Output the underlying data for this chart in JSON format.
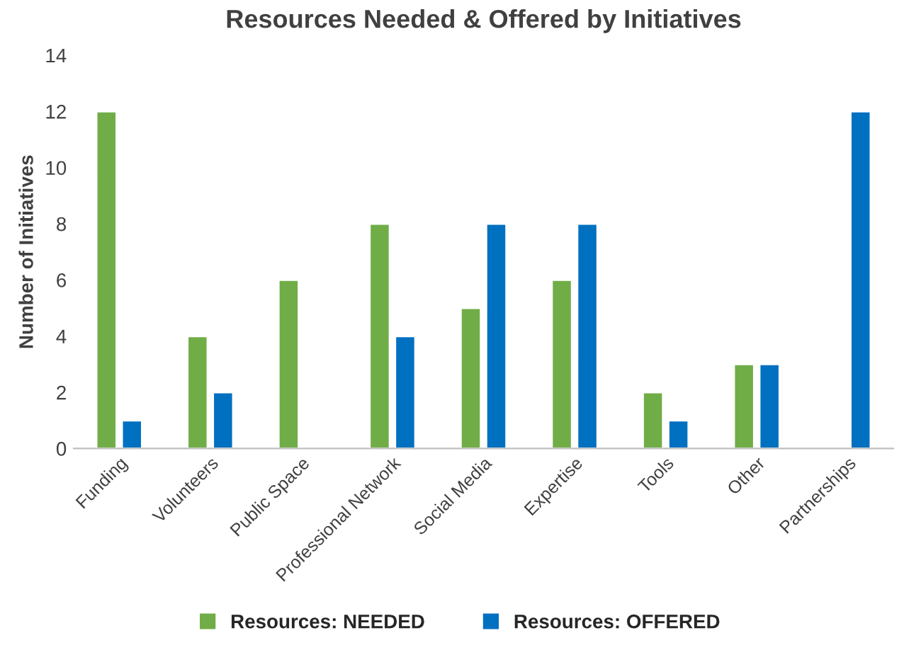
{
  "chart_data": {
    "type": "bar",
    "title": "Resources Needed & Offered by Initiatives",
    "ylabel": "Number of Initiatives",
    "categories": [
      "Funding",
      "Volunteers",
      "Public Space",
      "Professional Network",
      "Social Media",
      "Expertise",
      "Tools",
      "Other",
      "Partnerships"
    ],
    "series": [
      {
        "name": "Resources: NEEDED",
        "color": "#70ad47",
        "values": [
          12,
          4,
          6,
          8,
          5,
          6,
          2,
          3,
          null
        ]
      },
      {
        "name": "Resources: OFFERED",
        "color": "#0070c0",
        "values": [
          1,
          2,
          null,
          4,
          8,
          8,
          1,
          3,
          12
        ]
      }
    ],
    "ylim": [
      0,
      14
    ],
    "yticks": [
      0,
      2,
      4,
      6,
      8,
      10,
      12,
      14
    ],
    "grid": false,
    "legend": "bottom"
  }
}
